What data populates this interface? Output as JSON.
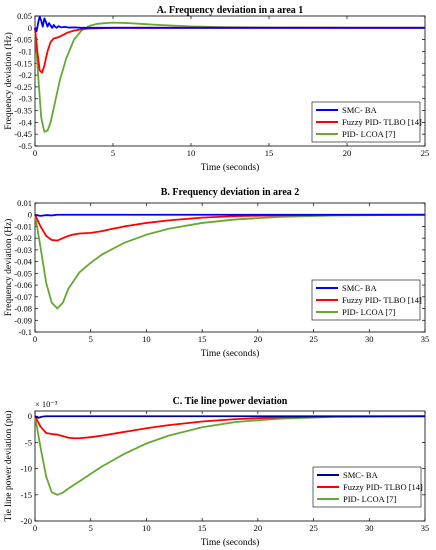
{
  "chart_data": [
    {
      "type": "line",
      "title": "A. Frequency deviation in a area 1",
      "xlabel": "Time (seconds)",
      "ylabel": "Frequency deviation (Hz)",
      "xlim": [
        0,
        25
      ],
      "ylim": [
        -0.5,
        0.05
      ],
      "xticks": [
        0,
        5,
        10,
        15,
        20,
        25
      ],
      "yticks": [
        0.05,
        0,
        -0.05,
        -0.1,
        -0.15,
        -0.2,
        -0.25,
        -0.3,
        -0.35,
        -0.4,
        -0.45,
        -0.5
      ],
      "ytick_labels": [
        "0.05",
        "0",
        "-0.05",
        "-0.1",
        "-0.15",
        "-0.2",
        "-0.25",
        "-0.3",
        "-0.35",
        "-0.4",
        "-0.45",
        "-0.5"
      ],
      "y_exponent": "",
      "legend_position": "bottom-right",
      "series": [
        {
          "name": "SMC- BA",
          "color": "#0000ff",
          "x": [
            0,
            0.1,
            0.2,
            0.3,
            0.4,
            0.5,
            0.6,
            0.7,
            0.8,
            0.9,
            1.0,
            1.1,
            1.2,
            1.3,
            1.4,
            1.5,
            1.7,
            1.9,
            2.2,
            2.5,
            3,
            4,
            25
          ],
          "y": [
            0,
            -0.015,
            0.02,
            0.048,
            0.03,
            0.005,
            0.04,
            0.025,
            0.005,
            0.02,
            0.01,
            0.0,
            0.012,
            0.004,
            0.0,
            0.007,
            0.002,
            0.004,
            0.001,
            0.002,
            0.0,
            0.0,
            0.0
          ]
        },
        {
          "name": "Fuzzy PID- TLBO [14]",
          "color": "#ff0000",
          "x": [
            0,
            0.15,
            0.3,
            0.45,
            0.6,
            0.8,
            1.0,
            1.2,
            1.5,
            1.8,
            2.1,
            2.5,
            3,
            3.5,
            4,
            5,
            7,
            10,
            25
          ],
          "y": [
            0,
            -0.1,
            -0.18,
            -0.19,
            -0.16,
            -0.1,
            -0.06,
            -0.045,
            -0.04,
            -0.03,
            -0.02,
            -0.012,
            -0.006,
            -0.003,
            -0.002,
            0.0,
            0.0,
            0.0,
            0.0
          ]
        },
        {
          "name": "PID- LCOA [7]",
          "color": "#66a832",
          "x": [
            0,
            0.2,
            0.4,
            0.6,
            0.8,
            1.0,
            1.3,
            1.6,
            2.0,
            2.5,
            3,
            3.5,
            4,
            4.5,
            5,
            6,
            7,
            8,
            10,
            12,
            15,
            25
          ],
          "y": [
            0,
            -0.2,
            -0.38,
            -0.44,
            -0.435,
            -0.4,
            -0.31,
            -0.22,
            -0.13,
            -0.05,
            -0.01,
            0.008,
            0.017,
            0.02,
            0.022,
            0.02,
            0.016,
            0.012,
            0.006,
            0.003,
            0.001,
            0.0
          ]
        }
      ]
    },
    {
      "type": "line",
      "title": "B. Frequency deviation in area 2",
      "xlabel": "Time (seconds)",
      "ylabel": "Frequency deviation (Hz)",
      "xlim": [
        0,
        35
      ],
      "ylim": [
        -0.1,
        0.01
      ],
      "xticks": [
        0,
        5,
        10,
        15,
        20,
        25,
        30,
        35
      ],
      "yticks": [
        0.01,
        0,
        -0.01,
        -0.02,
        -0.03,
        -0.04,
        -0.05,
        -0.06,
        -0.07,
        -0.08,
        -0.09,
        -0.1
      ],
      "ytick_labels": [
        "0.01",
        "0",
        "-0.01",
        "-0.02",
        "-0.03",
        "-0.04",
        "-0.05",
        "-0.06",
        "-0.07",
        "-0.08",
        "-0.09",
        "-0.1"
      ],
      "y_exponent": "",
      "legend_position": "bottom-right",
      "series": [
        {
          "name": "SMC- BA",
          "color": "#0000ff",
          "x": [
            0,
            0.2,
            0.5,
            1,
            1.5,
            2,
            35
          ],
          "y": [
            0,
            -0.0005,
            -0.001,
            -0.0003,
            -0.0006,
            0.0,
            0.0
          ]
        },
        {
          "name": "Fuzzy PID- TLBO [14]",
          "color": "#ff0000",
          "x": [
            0,
            0.5,
            1,
            1.5,
            2,
            2.5,
            3,
            3.5,
            4,
            5,
            6,
            7,
            8,
            10,
            12,
            15,
            18,
            22,
            27,
            35
          ],
          "y": [
            0,
            -0.01,
            -0.018,
            -0.0215,
            -0.022,
            -0.02,
            -0.018,
            -0.0168,
            -0.016,
            -0.0155,
            -0.014,
            -0.012,
            -0.01,
            -0.007,
            -0.0048,
            -0.0025,
            -0.0012,
            -0.0005,
            -0.0001,
            0.0
          ]
        },
        {
          "name": "PID- LCOA [7]",
          "color": "#66a832",
          "x": [
            0,
            0.5,
            1,
            1.5,
            2,
            2.5,
            3,
            4,
            5,
            6,
            8,
            10,
            12,
            15,
            18,
            22,
            27,
            35
          ],
          "y": [
            0,
            -0.028,
            -0.058,
            -0.075,
            -0.08,
            -0.075,
            -0.063,
            -0.049,
            -0.041,
            -0.034,
            -0.024,
            -0.017,
            -0.012,
            -0.007,
            -0.004,
            -0.0018,
            -0.0006,
            0.0
          ]
        }
      ]
    },
    {
      "type": "line",
      "title": "C. Tie line power deviation",
      "xlabel": "Time (seconds)",
      "ylabel": "Tie line power deviation (pu)",
      "xlim": [
        0,
        35
      ],
      "ylim": [
        -20,
        1
      ],
      "xticks": [
        0,
        5,
        10,
        15,
        20,
        25,
        30,
        35
      ],
      "yticks": [
        0,
        -5,
        -10,
        -15,
        -20
      ],
      "ytick_labels": [
        "0",
        "-5",
        "-10",
        "-15",
        "-20"
      ],
      "y_exponent": "× 10⁻³",
      "legend_position": "bottom-right",
      "series": [
        {
          "name": "SMC- BA",
          "color": "#00009c",
          "x": [
            0,
            0.3,
            0.6,
            1,
            35
          ],
          "y": [
            0,
            -0.3,
            -0.1,
            0.0,
            0.0
          ]
        },
        {
          "name": "Fuzzy PID- TLBO [14]",
          "color": "#ff0000",
          "x": [
            0,
            0.5,
            1,
            1.5,
            2,
            2.5,
            3,
            3.5,
            4,
            5,
            6,
            8,
            10,
            12,
            15,
            18,
            22,
            27,
            35
          ],
          "y": [
            0,
            -2,
            -3.2,
            -3.4,
            -3.5,
            -3.8,
            -4.1,
            -4.2,
            -4.2,
            -4.0,
            -3.7,
            -3.0,
            -2.3,
            -1.7,
            -1.0,
            -0.55,
            -0.2,
            -0.05,
            0.0
          ]
        },
        {
          "name": "PID- LCOA [7]",
          "color": "#66a832",
          "x": [
            0,
            0.5,
            1,
            1.5,
            2,
            2.5,
            3,
            4,
            5,
            6,
            8,
            10,
            12,
            15,
            18,
            22,
            27,
            35
          ],
          "y": [
            0,
            -6,
            -11.5,
            -14.5,
            -15,
            -14.6,
            -13.8,
            -12.4,
            -11,
            -9.6,
            -7.2,
            -5.2,
            -3.7,
            -2.1,
            -1.1,
            -0.45,
            -0.12,
            0.0
          ]
        }
      ]
    }
  ]
}
